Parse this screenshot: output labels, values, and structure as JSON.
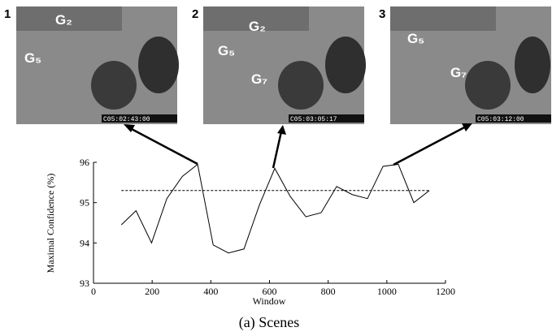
{
  "panels": [
    {
      "number": "1",
      "groups": [
        "G₂",
        "G₅"
      ],
      "timestamp": "C05:02:43:00"
    },
    {
      "number": "2",
      "groups": [
        "G₂",
        "G₅",
        "G₇"
      ],
      "timestamp": "C05:03:05:17"
    },
    {
      "number": "3",
      "groups": [
        "G₅",
        "G₇"
      ],
      "timestamp": "C05:03:12:00"
    }
  ],
  "chart_data": {
    "type": "line",
    "xlabel": "Window",
    "ylabel": "Maximal Confidence (%)",
    "caption": "(a) Scenes",
    "x": [
      95,
      145,
      198,
      250,
      303,
      355,
      408,
      460,
      513,
      566,
      618,
      671,
      724,
      776,
      829,
      882,
      934,
      987,
      1039,
      1092,
      1145
    ],
    "values": [
      94.45,
      94.8,
      94.0,
      95.1,
      95.65,
      95.95,
      93.95,
      93.75,
      93.85,
      94.95,
      95.85,
      95.15,
      94.65,
      94.75,
      95.4,
      95.2,
      95.1,
      95.9,
      95.95,
      95.0,
      95.3
    ],
    "color": "#000000",
    "reference_line": 95.3,
    "xlim": [
      0,
      1200
    ],
    "xticks": [
      0,
      200,
      400,
      600,
      800,
      1000,
      1200
    ],
    "ylim": [
      93,
      96
    ],
    "yticks": [
      93,
      94,
      95,
      96
    ]
  }
}
